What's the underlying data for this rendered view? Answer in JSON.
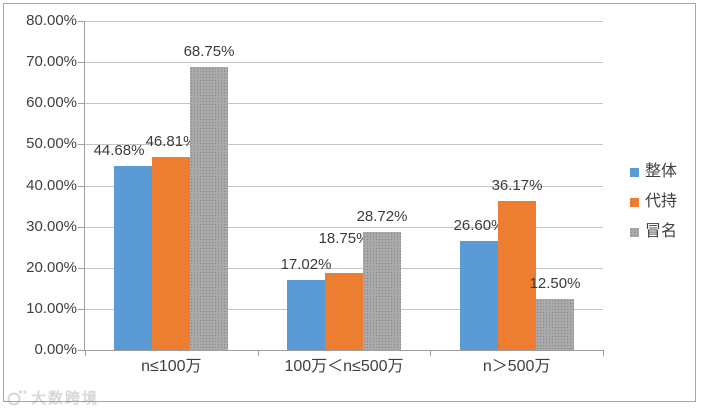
{
  "watermark": {
    "text": "大数跨境"
  },
  "chart_data": {
    "type": "bar",
    "title": "",
    "categories": [
      "n≤100万",
      "100万＜n≤500万",
      "n＞500万"
    ],
    "series": [
      {
        "name": "整体",
        "color": "#5B9BD5",
        "pattern": "solid",
        "values": [
          44.68,
          17.02,
          26.6
        ],
        "labels": [
          "44.68%",
          "17.02%",
          "26.60%"
        ]
      },
      {
        "name": "代持",
        "color": "#ED7D31",
        "pattern": "solid",
        "values": [
          46.81,
          18.75,
          36.17
        ],
        "labels": [
          "46.81%",
          "18.75%",
          "36.17%"
        ]
      },
      {
        "name": "冒名",
        "color": "#A6A6A6",
        "pattern": "dotted",
        "values": [
          68.75,
          28.72,
          12.5
        ],
        "labels": [
          "68.75%",
          "28.72%",
          "12.50%"
        ]
      }
    ],
    "y_axis": {
      "min": 0,
      "max": 80,
      "step": 10,
      "tick_labels": [
        "80.00%",
        "70.00%",
        "60.00%",
        "50.00%",
        "40.00%",
        "30.00%",
        "20.00%",
        "10.00%",
        "0.00%"
      ]
    },
    "grid": true,
    "legend_position": "right",
    "label_offsets": [
      [
        [
          -14,
          0
        ],
        [
          0,
          0
        ],
        [
          0,
          0
        ]
      ],
      [
        [
          0,
          0
        ],
        [
          0,
          -19
        ],
        [
          0,
          0
        ]
      ],
      [
        [
          0,
          0
        ],
        [
          0,
          0
        ],
        [
          0,
          0
        ]
      ]
    ]
  },
  "colors": {
    "grid": "#c4c4c4",
    "axis": "#9e9e9e",
    "frame_border": "#a6a6a6",
    "text": "#3f3f3f",
    "dot_pattern": "#898989"
  }
}
